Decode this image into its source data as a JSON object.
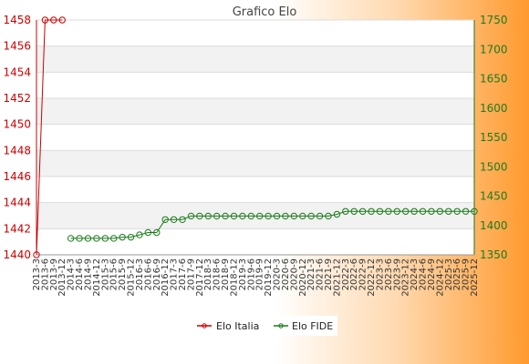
{
  "chart_data": {
    "type": "line",
    "title": "Grafico Elo",
    "y_left": {
      "ticks": [
        1440,
        1442,
        1444,
        1446,
        1448,
        1450,
        1452,
        1454,
        1456,
        1458
      ],
      "range": [
        1440,
        1458
      ]
    },
    "y_right": {
      "ticks": [
        1350,
        1400,
        1450,
        1500,
        1550,
        1600,
        1650,
        1700,
        1750
      ],
      "range": [
        1350,
        1750
      ]
    },
    "x_labels": [
      "2013-3",
      "2013-6",
      "2013-9",
      "2013-12",
      "2014-3",
      "2014-6",
      "2014-9",
      "2014-12",
      "2015-3",
      "2015-6",
      "2015-9",
      "2015-12",
      "2016-3",
      "2016-6",
      "2016-9",
      "2016-12",
      "2017-3",
      "2017-6",
      "2017-9",
      "2017-12",
      "2018-3",
      "2018-6",
      "2018-9",
      "2018-12",
      "2019-3",
      "2019-6",
      "2019-9",
      "2019-12",
      "2020-3",
      "2020-6",
      "2020-9",
      "2020-12",
      "2021-3",
      "2021-6",
      "2021-9",
      "2021-12",
      "2022-3",
      "2022-6",
      "2022-9",
      "2022-12",
      "2023-3",
      "2023-6",
      "2023-9",
      "2023-12",
      "2024-3",
      "2024-6",
      "2024-9",
      "2024-12",
      "2025-3",
      "2025-6",
      "2025-9",
      "2025-12"
    ],
    "grid": true,
    "legend_position": "bottom",
    "series": [
      {
        "name": "Elo Italia",
        "axis": "left",
        "color": "#cc0000",
        "points": [
          [
            0,
            1440
          ],
          [
            1,
            1458
          ],
          [
            2,
            1458
          ],
          [
            3,
            1458
          ]
        ]
      },
      {
        "name": "Elo FIDE",
        "axis": "right",
        "color": "#1a7a1a",
        "points": [
          [
            4,
            1378
          ],
          [
            5,
            1378
          ],
          [
            6,
            1378
          ],
          [
            7,
            1378
          ],
          [
            8,
            1378
          ],
          [
            9,
            1378
          ],
          [
            10,
            1380
          ],
          [
            11,
            1380
          ],
          [
            12,
            1384
          ],
          [
            13,
            1388
          ],
          [
            14,
            1388
          ],
          [
            15,
            1410
          ],
          [
            16,
            1410
          ],
          [
            17,
            1410
          ],
          [
            18,
            1416
          ],
          [
            19,
            1416
          ],
          [
            20,
            1416
          ],
          [
            21,
            1416
          ],
          [
            22,
            1416
          ],
          [
            23,
            1416
          ],
          [
            24,
            1416
          ],
          [
            25,
            1416
          ],
          [
            26,
            1416
          ],
          [
            27,
            1416
          ],
          [
            28,
            1416
          ],
          [
            29,
            1416
          ],
          [
            30,
            1416
          ],
          [
            31,
            1416
          ],
          [
            32,
            1416
          ],
          [
            33,
            1416
          ],
          [
            34,
            1416
          ],
          [
            35,
            1419
          ],
          [
            36,
            1424
          ],
          [
            37,
            1424
          ],
          [
            38,
            1424
          ],
          [
            39,
            1424
          ],
          [
            40,
            1424
          ],
          [
            41,
            1424
          ],
          [
            42,
            1424
          ],
          [
            43,
            1424
          ],
          [
            44,
            1424
          ],
          [
            45,
            1424
          ],
          [
            46,
            1424
          ],
          [
            47,
            1424
          ],
          [
            48,
            1424
          ],
          [
            49,
            1424
          ],
          [
            50,
            1424
          ],
          [
            51,
            1424
          ]
        ]
      }
    ]
  },
  "legend": {
    "italia_label": "Elo Italia",
    "fide_label": "Elo FIDE"
  }
}
